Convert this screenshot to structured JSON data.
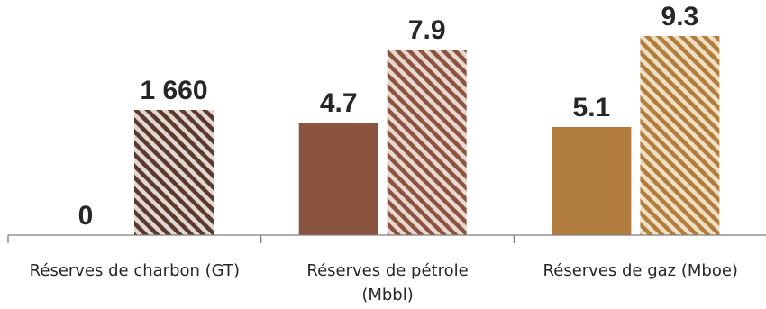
{
  "chart_data": {
    "type": "bar",
    "categories": [
      [
        "Réserves de charbon (GT)"
      ],
      [
        "Réserves de pétrole",
        "(Mbbl)"
      ],
      [
        "Réserves de gaz (Mboe)"
      ]
    ],
    "series": [
      {
        "values": [
          0,
          4.7,
          5.1
        ],
        "labels": [
          "0",
          "4.7",
          "5.1"
        ],
        "fill": "solid"
      },
      {
        "values": [
          1660,
          7.9,
          9.3
        ],
        "labels": [
          "1 660",
          "7.9",
          "9.3"
        ],
        "fill": "hatched"
      }
    ],
    "category_colors": [
      "#5a3a2e",
      "#8b5441",
      "#b07d3f"
    ],
    "category_hatch_light": [
      "#e2d8d0",
      "#ead8d0",
      "#f0dfc0"
    ],
    "grid": false,
    "legend": "none",
    "axis_color": "#7f7f7f"
  }
}
